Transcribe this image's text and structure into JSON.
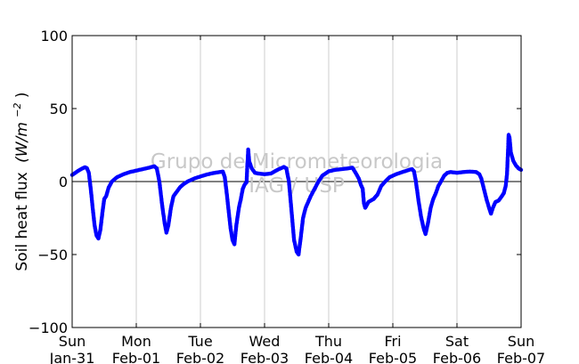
{
  "chart_data": {
    "type": "scatter",
    "ylabel": "Soil heat flux",
    "ylabel_unit_text": "(W/m",
    "ylabel_unit_sup": "−2",
    "ylabel_unit_close": ")",
    "ylim": [
      -100,
      100
    ],
    "yticks": [
      -100,
      -50,
      0,
      50,
      100
    ],
    "ytick_labels": [
      "−100",
      "−50",
      "0",
      "50",
      "100"
    ],
    "xlim": [
      0,
      7
    ],
    "xticks": [
      {
        "x": 0,
        "day": "Sun",
        "date": "Jan-31"
      },
      {
        "x": 1,
        "day": "Mon",
        "date": "Feb-01"
      },
      {
        "x": 2,
        "day": "Tue",
        "date": "Feb-02"
      },
      {
        "x": 3,
        "day": "Wed",
        "date": "Feb-03"
      },
      {
        "x": 4,
        "day": "Thu",
        "date": "Feb-04"
      },
      {
        "x": 5,
        "day": "Fri",
        "date": "Feb-05"
      },
      {
        "x": 6,
        "day": "Sat",
        "date": "Feb-06"
      },
      {
        "x": 7,
        "day": "Sun",
        "date": "Feb-07"
      }
    ],
    "grid": "vertical",
    "zero_line": true,
    "series": [
      {
        "color": "#0000ff",
        "points": [
          [
            0.0,
            4.5
          ],
          [
            0.05,
            6
          ],
          [
            0.1,
            7.5
          ],
          [
            0.15,
            8.8
          ],
          [
            0.2,
            9.8
          ],
          [
            0.23,
            9.2
          ],
          [
            0.26,
            6
          ],
          [
            0.29,
            -5
          ],
          [
            0.32,
            -18
          ],
          [
            0.35,
            -30
          ],
          [
            0.38,
            -37
          ],
          [
            0.41,
            -39
          ],
          [
            0.44,
            -33
          ],
          [
            0.47,
            -22
          ],
          [
            0.5,
            -12
          ],
          [
            0.53,
            -10
          ],
          [
            0.57,
            -4
          ],
          [
            0.62,
            0
          ],
          [
            0.7,
            3
          ],
          [
            0.8,
            5
          ],
          [
            0.9,
            6.5
          ],
          [
            1.0,
            7.5
          ],
          [
            1.1,
            8.5
          ],
          [
            1.2,
            9.5
          ],
          [
            1.28,
            10.5
          ],
          [
            1.32,
            9
          ],
          [
            1.36,
            0
          ],
          [
            1.4,
            -15
          ],
          [
            1.44,
            -28
          ],
          [
            1.47,
            -35
          ],
          [
            1.5,
            -30
          ],
          [
            1.54,
            -18
          ],
          [
            1.58,
            -10
          ],
          [
            1.63,
            -7
          ],
          [
            1.68,
            -4
          ],
          [
            1.73,
            -2
          ],
          [
            1.8,
            0
          ],
          [
            1.9,
            2
          ],
          [
            2.0,
            3.5
          ],
          [
            2.1,
            4.8
          ],
          [
            2.2,
            5.8
          ],
          [
            2.3,
            6.5
          ],
          [
            2.35,
            6.8
          ],
          [
            2.38,
            3
          ],
          [
            2.41,
            -8
          ],
          [
            2.44,
            -20
          ],
          [
            2.47,
            -32
          ],
          [
            2.5,
            -40
          ],
          [
            2.53,
            -43
          ],
          [
            2.56,
            -30
          ],
          [
            2.6,
            -18
          ],
          [
            2.63,
            -12
          ],
          [
            2.66,
            -5
          ],
          [
            2.69,
            -2
          ],
          [
            2.72,
            -0.5
          ],
          [
            2.73,
            10
          ],
          [
            2.74,
            17
          ],
          [
            2.745,
            22
          ],
          [
            2.76,
            14
          ],
          [
            2.8,
            9
          ],
          [
            2.85,
            6
          ],
          [
            2.9,
            5.5
          ],
          [
            3.0,
            5
          ],
          [
            3.1,
            5.5
          ],
          [
            3.2,
            8
          ],
          [
            3.3,
            10
          ],
          [
            3.34,
            9
          ],
          [
            3.38,
            0
          ],
          [
            3.42,
            -20
          ],
          [
            3.46,
            -40
          ],
          [
            3.5,
            -48
          ],
          [
            3.53,
            -50
          ],
          [
            3.56,
            -40
          ],
          [
            3.6,
            -25
          ],
          [
            3.64,
            -18
          ],
          [
            3.68,
            -14
          ],
          [
            3.72,
            -10
          ],
          [
            3.78,
            -5
          ],
          [
            3.84,
            0
          ],
          [
            3.9,
            4
          ],
          [
            4.0,
            7
          ],
          [
            4.1,
            8
          ],
          [
            4.2,
            8.5
          ],
          [
            4.3,
            9
          ],
          [
            4.37,
            9.5
          ],
          [
            4.42,
            6
          ],
          [
            4.47,
            2
          ],
          [
            4.5,
            -2
          ],
          [
            4.53,
            -5
          ],
          [
            4.55,
            -15
          ],
          [
            4.57,
            -18
          ],
          [
            4.62,
            -14
          ],
          [
            4.7,
            -12
          ],
          [
            4.76,
            -9
          ],
          [
            4.82,
            -3
          ],
          [
            4.88,
            0
          ],
          [
            4.95,
            3
          ],
          [
            5.05,
            5
          ],
          [
            5.15,
            6.5
          ],
          [
            5.25,
            8
          ],
          [
            5.3,
            8.5
          ],
          [
            5.33,
            7
          ],
          [
            5.36,
            0
          ],
          [
            5.4,
            -13
          ],
          [
            5.44,
            -24
          ],
          [
            5.48,
            -32
          ],
          [
            5.51,
            -36
          ],
          [
            5.55,
            -28
          ],
          [
            5.59,
            -18
          ],
          [
            5.63,
            -12
          ],
          [
            5.67,
            -8
          ],
          [
            5.71,
            -3
          ],
          [
            5.75,
            0
          ],
          [
            5.8,
            4
          ],
          [
            5.85,
            6
          ],
          [
            5.9,
            6.5
          ],
          [
            6.0,
            6
          ],
          [
            6.1,
            6.5
          ],
          [
            6.2,
            6.8
          ],
          [
            6.3,
            6.5
          ],
          [
            6.35,
            5
          ],
          [
            6.38,
            2
          ],
          [
            6.42,
            -5
          ],
          [
            6.46,
            -12
          ],
          [
            6.5,
            -18
          ],
          [
            6.53,
            -22
          ],
          [
            6.56,
            -18
          ],
          [
            6.6,
            -14
          ],
          [
            6.65,
            -13
          ],
          [
            6.7,
            -10
          ],
          [
            6.73,
            -8
          ],
          [
            6.76,
            -3
          ],
          [
            6.78,
            5
          ],
          [
            6.79,
            15
          ],
          [
            6.8,
            25
          ],
          [
            6.805,
            32
          ],
          [
            6.82,
            30
          ],
          [
            6.84,
            20
          ],
          [
            6.88,
            14
          ],
          [
            6.92,
            11
          ],
          [
            6.96,
            9
          ],
          [
            7.0,
            8
          ]
        ]
      }
    ],
    "watermark_lines": [
      "Grupo de Micrometeorologia",
      "IAG / USP"
    ]
  }
}
